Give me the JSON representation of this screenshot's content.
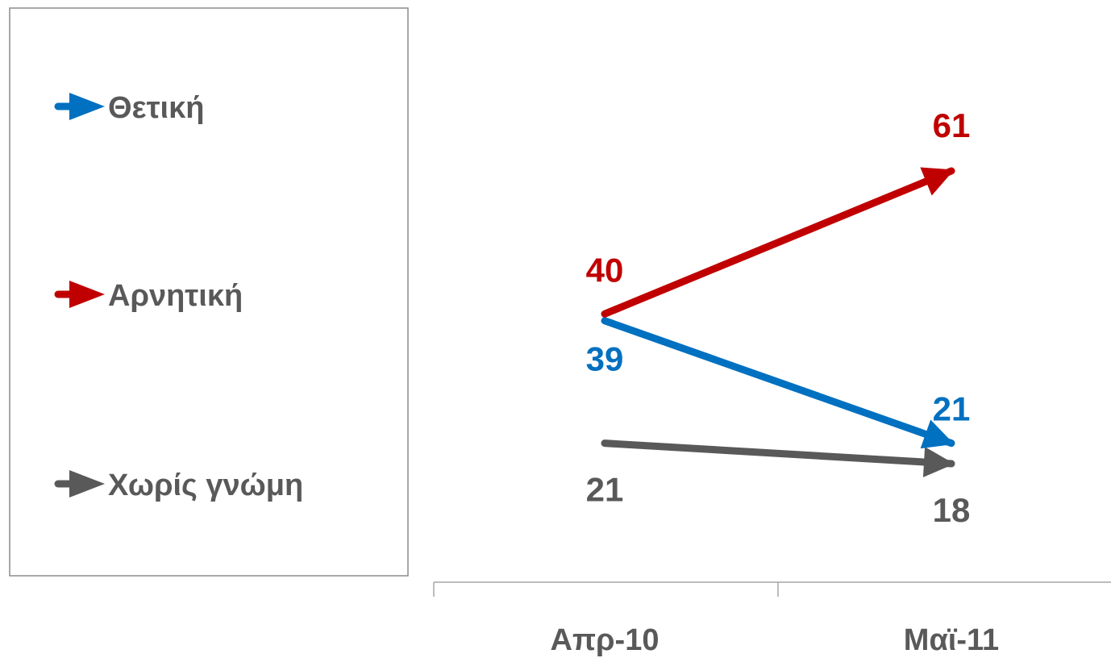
{
  "chart_data": {
    "type": "line",
    "categories": [
      "Απρ-10",
      "Μαϊ-11"
    ],
    "series": [
      {
        "name": "Θετική",
        "values": [
          39,
          21
        ],
        "color": "#0070C0"
      },
      {
        "name": "Αρνητική",
        "values": [
          40,
          61
        ],
        "color": "#C00000"
      },
      {
        "name": "Χωρίς γνώμη",
        "values": [
          21,
          18
        ],
        "color": "#595959"
      }
    ],
    "legend_position": "left",
    "grid": false
  }
}
